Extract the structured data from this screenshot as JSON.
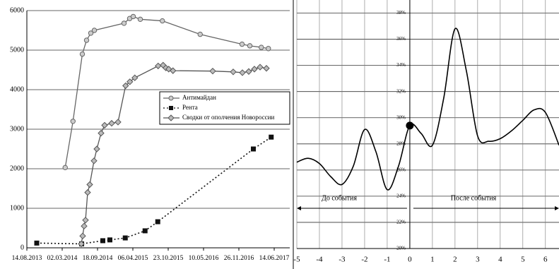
{
  "chart_data": [
    {
      "type": "line",
      "xlim": [
        "14.08.2013",
        "10.09.2017"
      ],
      "xticks": [
        "14.08.2013",
        "02.03.2014",
        "18.09.2014",
        "06.04.2015",
        "23.10.2015",
        "10.05.2016",
        "26.11.2016",
        "14.06.2017"
      ],
      "ylim": [
        0,
        6000
      ],
      "yticks": [
        0,
        1000,
        2000,
        3000,
        4000,
        5000,
        6000
      ],
      "grid": true,
      "legend": "center-right",
      "series": [
        {
          "name": "Антимайдан",
          "color": "#666666",
          "marker": "circle",
          "dash": "solid",
          "x": [
            "19.03.2014",
            "02.05.2014",
            "24.06.2014",
            "18.07.2014",
            "11.08.2014",
            "31.08.2014",
            "15.02.2015",
            "19.03.2015",
            "08.04.2015",
            "18.05.2015",
            "20.09.2015",
            "21.04.2016",
            "14.12.2016",
            "27.01.2017",
            "02.04.2017",
            "12.05.2017"
          ],
          "values": [
            2030,
            3200,
            4900,
            5250,
            5430,
            5500,
            5680,
            5800,
            5850,
            5780,
            5740,
            5400,
            5150,
            5110,
            5070,
            5040
          ]
        },
        {
          "name": "Рента",
          "color": "#111111",
          "marker": "square",
          "dash": "dotted",
          "x": [
            "09.10.2013",
            "20.06.2014",
            "18.10.2014",
            "27.11.2014",
            "22.02.2015",
            "14.06.2015",
            "25.08.2015",
            "16.02.2017",
            "28.05.2017"
          ],
          "values": [
            120,
            100,
            180,
            200,
            250,
            430,
            660,
            2500,
            2800
          ]
        },
        {
          "name": "Сводки от ополчения Новороссии",
          "color": "#555555",
          "marker": "diamond",
          "dash": "solid",
          "x": [
            "18.06.2014",
            "26.06.2014",
            "04.07.2014",
            "12.07.2014",
            "24.07.2014",
            "05.08.2014",
            "29.08.2014",
            "14.09.2014",
            "08.10.2014",
            "28.10.2014",
            "07.12.2014",
            "12.01.2015",
            "24.02.2015",
            "20.03.2015",
            "17.04.2015",
            "27.08.2015",
            "24.09.2015",
            "10.10.2015",
            "26.10.2015",
            "19.11.2015",
            "01.07.2016",
            "25.10.2016",
            "16.12.2016",
            "21.01.2017",
            "22.02.2017",
            "26.03.2017",
            "01.05.2017"
          ],
          "values": [
            100,
            300,
            550,
            700,
            1400,
            1600,
            2200,
            2500,
            2900,
            3100,
            3150,
            3180,
            4100,
            4200,
            4300,
            4600,
            4620,
            4550,
            4520,
            4480,
            4470,
            4450,
            4430,
            4460,
            4520,
            4570,
            4540
          ]
        }
      ]
    },
    {
      "type": "line",
      "xlim": [
        -5,
        6.6
      ],
      "xticks": [
        -5,
        -4,
        -3,
        -2,
        -1,
        0,
        1,
        2,
        3,
        4,
        5,
        6
      ],
      "ylim": [
        20,
        39
      ],
      "yticks": [
        {
          "value": 20,
          "label": "20%"
        },
        {
          "value": 22,
          "label": "22%"
        },
        {
          "value": 24,
          "label": "24%"
        },
        {
          "value": 26,
          "label": "26%"
        },
        {
          "value": 28,
          "label": "28%"
        },
        {
          "value": 30,
          "label": "30%"
        },
        {
          "value": 32,
          "label": "32%"
        },
        {
          "value": 34,
          "label": "34%"
        },
        {
          "value": 36,
          "label": "36%"
        },
        {
          "value": 38,
          "label": "38%"
        }
      ],
      "grid": true,
      "annotations": [
        "До события",
        "После события"
      ],
      "event_point": {
        "x": 0,
        "y": 29.4
      },
      "series": [
        {
          "color": "#000000",
          "x": [
            -5,
            -4.5,
            -4,
            -3.5,
            -3,
            -2.5,
            -2,
            -1.5,
            -1,
            -0.5,
            0,
            0.5,
            1,
            1.5,
            2,
            2.5,
            3,
            3.5,
            4,
            4.5,
            5,
            5.5,
            6,
            6.6
          ],
          "values": [
            26.6,
            26.9,
            26.5,
            25.5,
            24.9,
            26.3,
            29.1,
            27.4,
            24.5,
            26.3,
            29.4,
            28.8,
            27.9,
            31.5,
            36.8,
            33.6,
            28.6,
            28.2,
            28.4,
            29.0,
            29.8,
            30.6,
            30.4,
            27.9
          ]
        }
      ]
    }
  ]
}
